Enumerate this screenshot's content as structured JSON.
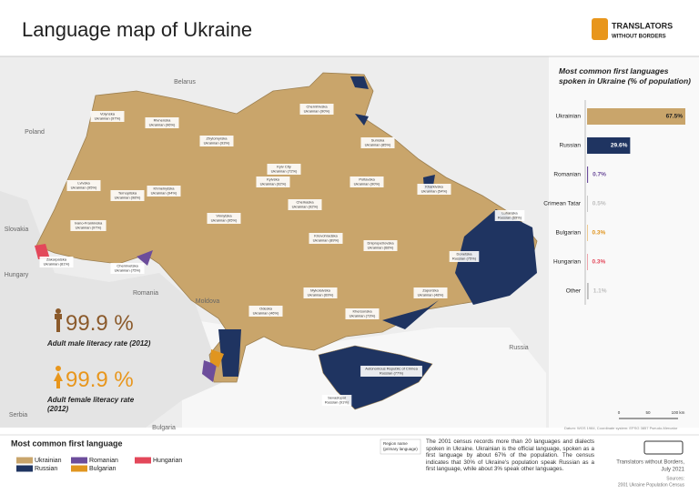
{
  "header": {
    "title": "Language map of Ukraine",
    "logo_name": "TRANSLATORS",
    "logo_sub": "WITHOUT BORDERS"
  },
  "neighbors": [
    "Belarus",
    "Poland",
    "Slovakia",
    "Hungary",
    "Romania",
    "Moldova",
    "Russia",
    "Serbia",
    "Bulgaria"
  ],
  "regions": [
    {
      "name": "Volynska",
      "language": "Ukrainian (97%)"
    },
    {
      "name": "Rivnenska",
      "language": "Ukrainian (96%)"
    },
    {
      "name": "Zhytomyrska",
      "language": "Ukrainian (93%)"
    },
    {
      "name": "Kyiv City",
      "language": "Ukrainian (72%)"
    },
    {
      "name": "Kyivska",
      "language": "Ukrainian (92%)"
    },
    {
      "name": "Chernihivska",
      "language": "Ukrainian (90%)"
    },
    {
      "name": "Sumska",
      "language": "Ukrainian (85%)"
    },
    {
      "name": "Poltavska",
      "language": "Ukrainian (90%)"
    },
    {
      "name": "Kharkivska",
      "language": "Ukrainian (54%)"
    },
    {
      "name": "Luhanska",
      "language": "Russian (69%)"
    },
    {
      "name": "Donetska",
      "language": "Russian (75%)"
    },
    {
      "name": "Zaporizka",
      "language": "Ukrainian (48%)"
    },
    {
      "name": "Dnipropetrovska",
      "language": "Ukrainian (68%)"
    },
    {
      "name": "Cherkaska",
      "language": "Ukrainian (92%)"
    },
    {
      "name": "Kirovohradska",
      "language": "Ukrainian (89%)"
    },
    {
      "name": "Mykolaivska",
      "language": "Ukrainian (69%)"
    },
    {
      "name": "Khersonska",
      "language": "Ukrainian (73%)"
    },
    {
      "name": "Odeska",
      "language": "Ukrainian (46%)"
    },
    {
      "name": "Vinnytska",
      "language": "Ukrainian (95%)"
    },
    {
      "name": "Khmelnytska",
      "language": "Ukrainian (94%)"
    },
    {
      "name": "Ternopilska",
      "language": "Ukrainian (98%)"
    },
    {
      "name": "Lvivska",
      "language": "Ukrainian (95%)"
    },
    {
      "name": "Ivano-Frankivska",
      "language": "Ukrainian (97%)"
    },
    {
      "name": "Zakarpatska",
      "language": "Ukrainian (81%)"
    },
    {
      "name": "Chernivetska",
      "language": "Ukrainian (75%)"
    },
    {
      "name": "Autonomous Republic of Crimea",
      "language": "Russian (77%)"
    },
    {
      "name": "Sevastopol",
      "language": "Russian (91%)"
    }
  ],
  "chart_data": {
    "type": "bar",
    "title": "Most common first languages spoken in Ukraine (% of population)",
    "categories": [
      "Ukrainian",
      "Russian",
      "Romanian",
      "Crimean Tatar",
      "Bulgarian",
      "Hungarian",
      "Other"
    ],
    "values": [
      67.5,
      29.6,
      0.7,
      0.5,
      0.3,
      0.3,
      1.1
    ],
    "value_labels": [
      "67.5%",
      "29.6%",
      "0.7%",
      "0.5%",
      "0.3%",
      "0.3%",
      "1.1%"
    ],
    "colors": [
      "#c9a56b",
      "#1f3461",
      "#6c4d9b",
      "#bdbdbd",
      "#e0951f",
      "#e3475a",
      "#bdbdbd"
    ]
  },
  "literacy": [
    {
      "value": "99.9 %",
      "label": "Adult male literacy rate (2012)",
      "color": "#8b5a2b"
    },
    {
      "value": "99.9 %",
      "label": "Adult female literacy rate (2012)",
      "color": "#e8961c"
    }
  ],
  "legend": {
    "title": "Most common first language",
    "items": [
      {
        "name": "Ukrainian",
        "color": "#c9a56b"
      },
      {
        "name": "Russian",
        "color": "#1f3461"
      },
      {
        "name": "Romanian",
        "color": "#6c4d9b"
      },
      {
        "name": "Bulgarian",
        "color": "#e0951f"
      },
      {
        "name": "Hungarian",
        "color": "#e3475a"
      }
    ],
    "key_name": "Region name",
    "key_language": "(primary language)"
  },
  "notes": {
    "text": "The 2001 census records more than 20 languages and dialects spoken in Ukraine. Ukrainian is the official language, spoken as a first language by about 67% of the population. The census indicates that 30% of Ukraine's population speak Russian as a first language, while about 3% speak other languages.",
    "datum": "Datum: WGS 1984, Coordinate system: EPSG 3857 Pseudo-Mercator",
    "scale": [
      "0",
      "50",
      "100 km"
    ],
    "credit": "Translators without Borders,",
    "date": "July 2021",
    "sources_label": "Sources:",
    "sources": "2001 Ukraine Population Census"
  }
}
